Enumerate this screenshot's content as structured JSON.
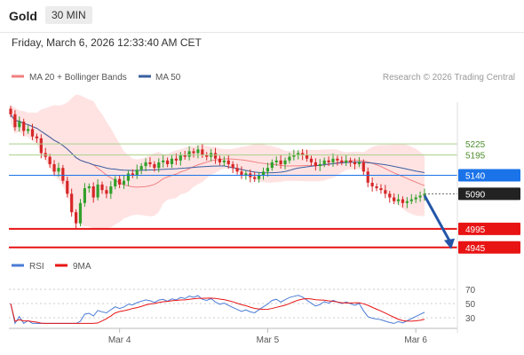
{
  "header": {
    "title": "Gold",
    "interval": "30 MIN"
  },
  "datetime": "Friday, March 6, 2026 12:33:40 AM CET",
  "colors": {
    "up": "#33a02c",
    "down": "#d62728",
    "bollinger_fill": "#ffd9d9",
    "ma20": "#f08080",
    "ma50": "#3a5fa0",
    "resistance": "#a8cf8a",
    "pivot": "#1a73e8",
    "support": "#e81414",
    "last": "#222222",
    "rsi": "#4a7bd6",
    "rsi_ma": "#e81414",
    "arrow": "#2356a8"
  },
  "chart_data": [
    {
      "type": "candlestick",
      "legend": [
        {
          "name": "MA 20 + Bollinger Bands",
          "color": "#f08080"
        },
        {
          "name": "MA 50",
          "color": "#3a5fa0"
        }
      ],
      "legend_position": "top-left",
      "attribution": "Research © 2026 Trading Central",
      "x_ticks": [
        "Mar 4",
        "Mar 5",
        "Mar 6"
      ],
      "ylim": [
        4930,
        5350
      ],
      "levels": [
        {
          "label": "5225",
          "value": 5225,
          "kind": "resistance"
        },
        {
          "label": "5195",
          "value": 5195,
          "kind": "resistance"
        },
        {
          "label": "5140",
          "value": 5140,
          "kind": "pivot"
        },
        {
          "label": "5090",
          "value": 5090,
          "kind": "last"
        },
        {
          "label": "4995",
          "value": 4995,
          "kind": "support"
        },
        {
          "label": "4945",
          "value": 4945,
          "kind": "support"
        }
      ],
      "close": [
        5305,
        5270,
        5285,
        5260,
        5265,
        5245,
        5240,
        5200,
        5190,
        5170,
        5150,
        5160,
        5125,
        5090,
        5040,
        5010,
        5065,
        5105,
        5110,
        5080,
        5115,
        5100,
        5090,
        5110,
        5130,
        5115,
        5125,
        5145,
        5140,
        5155,
        5165,
        5175,
        5170,
        5160,
        5175,
        5180,
        5170,
        5185,
        5180,
        5195,
        5190,
        5205,
        5200,
        5210,
        5195,
        5190,
        5200,
        5185,
        5175,
        5180,
        5170,
        5160,
        5150,
        5140,
        5145,
        5135,
        5130,
        5140,
        5150,
        5160,
        5175,
        5180,
        5170,
        5180,
        5190,
        5195,
        5200,
        5195,
        5185,
        5175,
        5165,
        5170,
        5180,
        5175,
        5185,
        5180,
        5175,
        5180,
        5175,
        5170,
        5175,
        5150,
        5120,
        5110,
        5105,
        5100,
        5090,
        5080,
        5070,
        5075,
        5065,
        5070,
        5075,
        5080,
        5085,
        5090
      ],
      "open": [
        5320,
        5305,
        5270,
        5285,
        5260,
        5265,
        5245,
        5240,
        5200,
        5190,
        5170,
        5150,
        5160,
        5125,
        5090,
        5040,
        5010,
        5065,
        5105,
        5110,
        5080,
        5115,
        5100,
        5090,
        5110,
        5130,
        5115,
        5125,
        5145,
        5140,
        5155,
        5165,
        5175,
        5170,
        5160,
        5175,
        5180,
        5170,
        5185,
        5180,
        5195,
        5190,
        5205,
        5200,
        5210,
        5195,
        5190,
        5200,
        5185,
        5175,
        5180,
        5170,
        5160,
        5150,
        5140,
        5145,
        5135,
        5130,
        5140,
        5150,
        5160,
        5175,
        5180,
        5170,
        5180,
        5190,
        5195,
        5200,
        5195,
        5185,
        5175,
        5165,
        5170,
        5180,
        5175,
        5185,
        5180,
        5175,
        5180,
        5175,
        5170,
        5175,
        5150,
        5120,
        5110,
        5105,
        5100,
        5090,
        5080,
        5070,
        5075,
        5065,
        5070,
        5075,
        5080,
        5085
      ]
    },
    {
      "type": "line",
      "legend": [
        {
          "name": "RSI",
          "color": "#4a7bd6"
        },
        {
          "name": "9MA",
          "color": "#e81414"
        }
      ],
      "legend_position": "top-left",
      "y_ticks": [
        "70",
        "50",
        "30"
      ],
      "ylim": [
        20,
        80
      ]
    }
  ]
}
